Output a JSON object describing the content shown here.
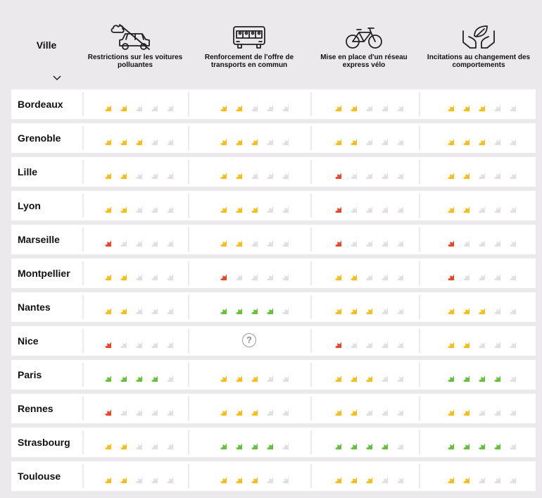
{
  "header": {
    "city_column_label": "Ville",
    "columns": [
      {
        "label": "Restrictions sur les voitures polluantes",
        "icon": "car-restriction-icon"
      },
      {
        "label": "Renforcement de l'offre de transports en commun",
        "icon": "bus-icon"
      },
      {
        "label": "Mise en place d'un réseau express vélo",
        "icon": "bicycle-icon"
      },
      {
        "label": "Incitations au changement des comportements",
        "icon": "hands-leaf-icon"
      }
    ]
  },
  "rating_scale_max": 5,
  "unknown_symbol": "?",
  "colors": {
    "red": "#e9452a",
    "yellow": "#f7bd1b",
    "green": "#64c23a",
    "empty": "#e2dee2",
    "background": "#ece9ec"
  },
  "rows": [
    {
      "city": "Bordeaux",
      "ratings": [
        2,
        2,
        2,
        3
      ]
    },
    {
      "city": "Grenoble",
      "ratings": [
        3,
        3,
        2,
        3
      ]
    },
    {
      "city": "Lille",
      "ratings": [
        2,
        2,
        1,
        2
      ]
    },
    {
      "city": "Lyon",
      "ratings": [
        2,
        3,
        1,
        2
      ]
    },
    {
      "city": "Marseille",
      "ratings": [
        1,
        2,
        1,
        1
      ]
    },
    {
      "city": "Montpellier",
      "ratings": [
        2,
        1,
        2,
        1
      ]
    },
    {
      "city": "Nantes",
      "ratings": [
        2,
        4,
        3,
        3
      ]
    },
    {
      "city": "Nice",
      "ratings": [
        1,
        null,
        1,
        2
      ]
    },
    {
      "city": "Paris",
      "ratings": [
        4,
        3,
        3,
        4
      ]
    },
    {
      "city": "Rennes",
      "ratings": [
        1,
        3,
        2,
        2
      ]
    },
    {
      "city": "Strasbourg",
      "ratings": [
        2,
        4,
        4,
        4
      ]
    },
    {
      "city": "Toulouse",
      "ratings": [
        2,
        3,
        3,
        2
      ]
    }
  ]
}
